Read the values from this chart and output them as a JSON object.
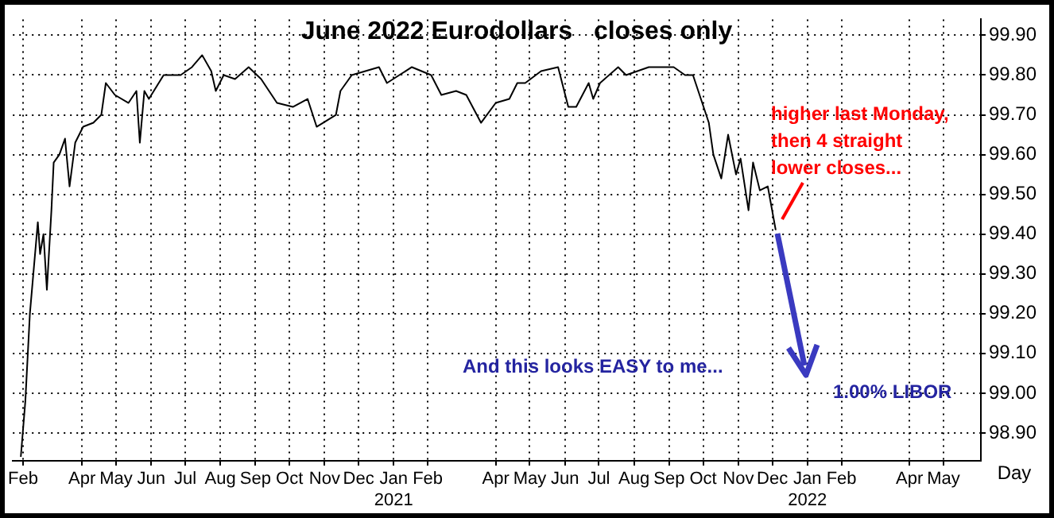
{
  "chart_data": {
    "type": "line",
    "title": "June 2022 Eurodollars   closes only",
    "xlabel": "Day",
    "annotations": [
      "higher last Monday,\nthen 4 straight\nlower closes...",
      "And this looks EASY to me...",
      "1.00% LIBOR"
    ],
    "x": [
      "2020-02-22",
      "2020-02-26",
      "2020-03-01",
      "2020-03-08",
      "2020-03-10",
      "2020-03-13",
      "2020-03-16",
      "2020-03-20",
      "2020-03-22",
      "2020-03-27",
      "2020-04-01",
      "2020-04-05",
      "2020-04-10",
      "2020-04-17",
      "2020-04-26",
      "2020-05-03",
      "2020-05-07",
      "2020-05-15",
      "2020-05-27",
      "2020-06-03",
      "2020-06-06",
      "2020-06-10",
      "2020-06-14",
      "2020-06-27",
      "2020-07-12",
      "2020-07-22",
      "2020-07-31",
      "2020-08-08",
      "2020-08-12",
      "2020-08-19",
      "2020-08-29",
      "2020-09-10",
      "2020-09-21",
      "2020-10-05",
      "2020-10-19",
      "2020-11-01",
      "2020-11-09",
      "2020-11-26",
      "2020-11-30",
      "2020-12-10",
      "2021-01-03",
      "2021-01-10",
      "2021-02-01",
      "2021-02-18",
      "2021-02-27",
      "2021-03-12",
      "2021-03-21",
      "2021-04-03",
      "2021-04-16",
      "2021-04-28",
      "2021-05-05",
      "2021-05-12",
      "2021-05-26",
      "2021-06-10",
      "2021-06-19",
      "2021-06-26",
      "2021-07-07",
      "2021-07-11",
      "2021-07-17",
      "2021-08-02",
      "2021-08-09",
      "2021-08-29",
      "2021-09-20",
      "2021-09-30",
      "2021-10-07",
      "2021-10-14",
      "2021-10-21",
      "2021-10-25",
      "2021-11-01",
      "2021-11-07",
      "2021-11-14",
      "2021-11-18",
      "2021-11-25",
      "2021-11-29",
      "2021-12-05",
      "2021-12-12",
      "2021-12-19"
    ],
    "values": [
      98.84,
      98.98,
      99.2,
      99.43,
      99.35,
      99.4,
      99.26,
      99.46,
      99.58,
      99.6,
      99.64,
      99.52,
      99.63,
      99.67,
      99.68,
      99.7,
      99.78,
      99.75,
      99.73,
      99.76,
      99.63,
      99.76,
      99.74,
      99.8,
      99.8,
      99.82,
      99.85,
      99.81,
      99.76,
      99.8,
      99.79,
      99.82,
      99.79,
      99.73,
      99.72,
      99.74,
      99.67,
      99.7,
      99.76,
      99.8,
      99.82,
      99.78,
      99.82,
      99.8,
      99.75,
      99.76,
      99.75,
      99.68,
      99.73,
      99.74,
      99.78,
      99.78,
      99.81,
      99.82,
      99.72,
      99.72,
      99.78,
      99.74,
      99.78,
      99.82,
      99.8,
      99.82,
      99.82,
      99.8,
      99.8,
      99.74,
      99.68,
      99.6,
      99.54,
      99.65,
      99.55,
      99.59,
      99.46,
      99.58,
      99.51,
      99.52,
      99.41
    ],
    "color": "#000000",
    "marker": "none",
    "grid": true,
    "legend": false,
    "xlim": [
      "2020-02-15",
      "2022-06-18"
    ],
    "xticks": [
      {
        "value": "2020-02-24",
        "label": "Feb"
      },
      {
        "value": "2020-04-16",
        "label": "Apr"
      },
      {
        "value": "2020-05-16",
        "label": "May"
      },
      {
        "value": "2020-06-16",
        "label": "Jun"
      },
      {
        "value": "2020-07-16",
        "label": "Jul"
      },
      {
        "value": "2020-08-16",
        "label": "Aug"
      },
      {
        "value": "2020-09-16",
        "label": "Sep"
      },
      {
        "value": "2020-10-16",
        "label": "Oct"
      },
      {
        "value": "2020-11-16",
        "label": "Nov"
      },
      {
        "value": "2020-12-16",
        "label": "Dec"
      },
      {
        "value": "2021-01-16",
        "label": "Jan\n2021"
      },
      {
        "value": "2021-02-15",
        "label": "Feb"
      },
      {
        "value": "2021-04-16",
        "label": "Apr"
      },
      {
        "value": "2021-05-16",
        "label": "May"
      },
      {
        "value": "2021-06-16",
        "label": "Jun"
      },
      {
        "value": "2021-07-16",
        "label": "Jul"
      },
      {
        "value": "2021-08-16",
        "label": "Aug"
      },
      {
        "value": "2021-09-16",
        "label": "Sep"
      },
      {
        "value": "2021-10-16",
        "label": "Oct"
      },
      {
        "value": "2021-11-16",
        "label": "Nov"
      },
      {
        "value": "2021-12-16",
        "label": "Dec"
      },
      {
        "value": "2022-01-16",
        "label": "Jan\n2022"
      },
      {
        "value": "2022-02-15",
        "label": "Feb"
      },
      {
        "value": "2022-04-16",
        "label": "Apr"
      },
      {
        "value": "2022-05-16",
        "label": "May"
      }
    ],
    "ylim": [
      98.83,
      99.94
    ],
    "yticks": [
      {
        "value": 98.9,
        "label": "98.90"
      },
      {
        "value": 99,
        "label": "99.00"
      },
      {
        "value": 99.1,
        "label": "99.10"
      },
      {
        "value": 99.2,
        "label": "99.20"
      },
      {
        "value": 99.3,
        "label": "99.30"
      },
      {
        "value": 99.4,
        "label": "99.40"
      },
      {
        "value": 99.5,
        "label": "99.50"
      },
      {
        "value": 99.6,
        "label": "99.60"
      },
      {
        "value": 99.7,
        "label": "99.70"
      },
      {
        "value": 99.8,
        "label": "99.80"
      },
      {
        "value": 99.9,
        "label": "99.90"
      }
    ]
  }
}
